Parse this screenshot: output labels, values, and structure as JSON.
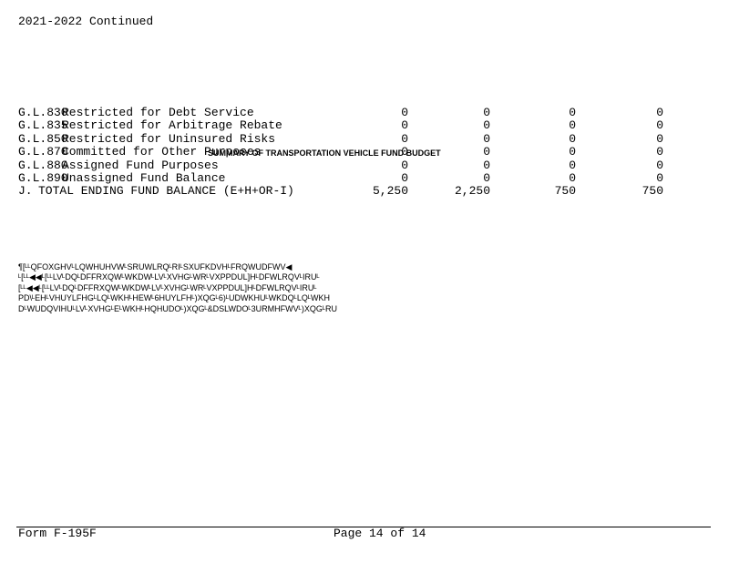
{
  "header": {
    "title": "2021-2022 Continued"
  },
  "table": {
    "overlay_title": "SUMMARY OF TRANSPORTATION VEHICLE FUND BUDGET",
    "rows": [
      {
        "code": "G.L.830",
        "label": "Restricted for Debt Service",
        "values": [
          "0",
          "0",
          "0",
          "0"
        ]
      },
      {
        "code": "G.L.835",
        "label": "Restricted for Arbitrage Rebate",
        "values": [
          "0",
          "0",
          "0",
          "0"
        ]
      },
      {
        "code": "G.L.850",
        "label": "Restricted for Uninsured Risks",
        "values": [
          "0",
          "0",
          "0",
          "0"
        ]
      },
      {
        "code": "G.L.870",
        "label": "Committed for Other Purposes",
        "values": [
          "0",
          "0",
          "0",
          "0"
        ]
      },
      {
        "code": "G.L.880",
        "label": "Assigned Fund Purposes",
        "values": [
          "0",
          "0",
          "0",
          "0"
        ]
      },
      {
        "code": "G.L.890",
        "label": "Unassigned Fund Balance",
        "values": [
          "0",
          "0",
          "0",
          "0"
        ]
      },
      {
        "code": "J.",
        "label": "TOTAL ENDING FUND BALANCE (E+H+OR-I)",
        "values": [
          "5,250",
          "2,250",
          "750",
          "750"
        ]
      }
    ]
  },
  "notes": [
    "¶[ᴸᴸQFOXGHVᴸLQWHUHVWᴸSRUWLRQᴸRIᴸSXUFKDVHᴸFRQWUDFWV◀",
    "ᴸ[ᴸᴸ◀◀ᴸ[ᴸᴸLVᴸDQᴸDFFRXQWᴸWKDWᴸLVᴸXVHGᴸWRᴸVXPPDUL]HᴸDFWLRQVᴸIRUᴸ",
    "[ᴸᴸ◀◀ᴸ[ᴸᴸLVᴸDQᴸDFFRXQWᴸWKDWᴸLVᴸXVHGᴸWRᴸVXPPDUL]HᴸDFWLRQVᴸIRUᴸ",
    "PD\\ᴸEHᴸVHUYLFHGᴸLQᴸWKHᴸHEWᴸ6HUYLFHᴸ)XQGᴸ6)ᴸUDWKHUᴸWKDQᴸLQᴸWKH",
    "DᴸWUDQVIHUᴸLVᴸXVHGᴸEᴸWKHᴸHQHUDOᴸ)XQGᴸ&DSLWDOᴸ3URMHFWVᴸ)XQGᴸRU"
  ],
  "footer": {
    "form": "Form F-195F",
    "page": "Page 14 of 14"
  }
}
